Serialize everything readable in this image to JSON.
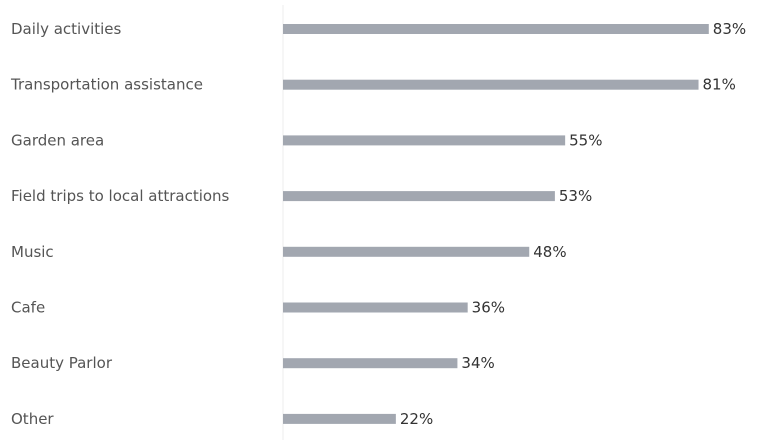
{
  "chart_data": {
    "type": "bar",
    "orientation": "horizontal",
    "categories": [
      "Daily activities",
      "Transportation assistance",
      "Garden area",
      "Field trips to local attractions",
      "Music",
      "Cafe",
      "Beauty Parlor",
      "Other"
    ],
    "values": [
      83,
      81,
      55,
      53,
      48,
      36,
      34,
      22
    ],
    "value_labels": [
      "83%",
      "81%",
      "55%",
      "53%",
      "48%",
      "36%",
      "34%",
      "22%"
    ],
    "xlim": [
      0,
      100
    ],
    "grid": false,
    "bar_color": "#a2a7b0",
    "title": "",
    "xlabel": "",
    "ylabel": ""
  }
}
